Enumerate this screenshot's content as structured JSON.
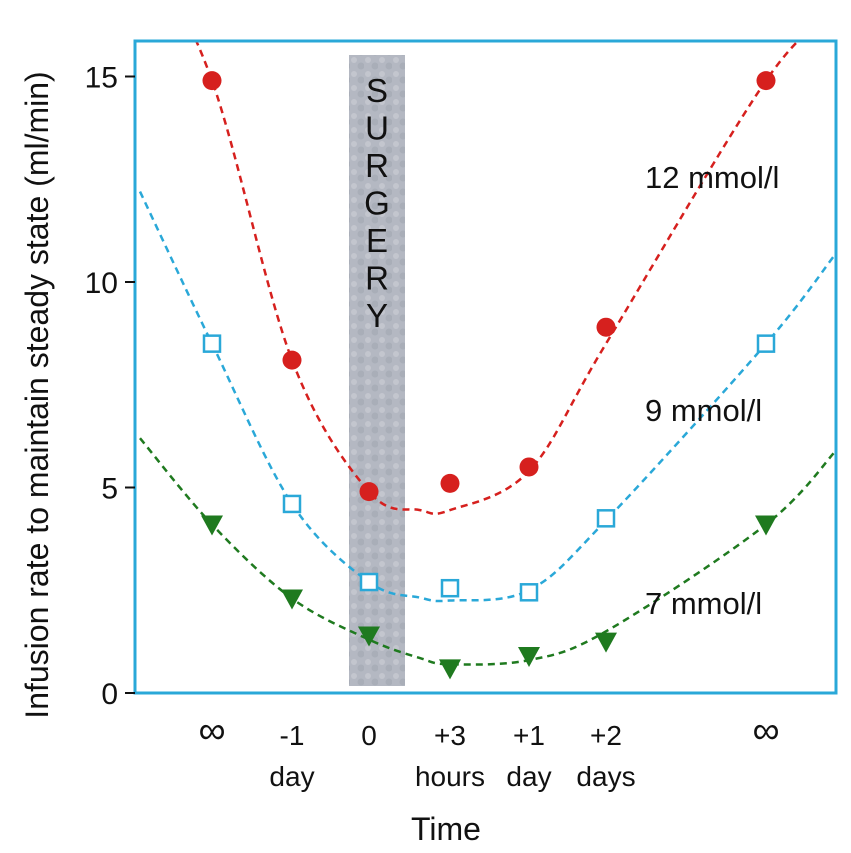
{
  "colors": {
    "frame": "#2aa8d8",
    "red": "#d6201e",
    "blue": "#2aa8d8",
    "green": "#1f7a1f",
    "surgery_band": "#b4b8c2"
  },
  "chart_data": {
    "type": "scatter",
    "title": "",
    "xlabel": "Time",
    "ylabel": "Infusion rate to maintain steady state (ml/min)",
    "ylim": [
      0,
      16
    ],
    "yticks": [
      "0",
      "5",
      "10",
      "15"
    ],
    "categories": [
      {
        "line1": "∞",
        "line2": ""
      },
      {
        "line1": "-1",
        "line2": "day"
      },
      {
        "line1": "0",
        "line2": ""
      },
      {
        "line1": "+3",
        "line2": "hours"
      },
      {
        "line1": "+1",
        "line2": "day"
      },
      {
        "line1": "+2",
        "line2": "days"
      },
      {
        "line1": "∞",
        "line2": ""
      }
    ],
    "annotation": {
      "text": "SURGERY",
      "at_category": "0"
    },
    "series": [
      {
        "name": "12 mmol/l",
        "marker": "circle",
        "color": "red",
        "values": [
          14.9,
          8.1,
          4.9,
          5.1,
          5.5,
          8.9,
          14.9
        ],
        "fit": "dashed curve"
      },
      {
        "name": "9 mmol/l",
        "marker": "open-square",
        "color": "blue",
        "values": [
          8.5,
          4.6,
          2.7,
          2.55,
          2.45,
          4.25,
          8.5
        ],
        "fit": "dashed curve"
      },
      {
        "name": "7 mmol/l",
        "marker": "down-triangle",
        "color": "green",
        "values": [
          4.1,
          2.3,
          1.4,
          0.6,
          0.9,
          1.25,
          4.1
        ],
        "fit": "dashed curve"
      }
    ]
  }
}
